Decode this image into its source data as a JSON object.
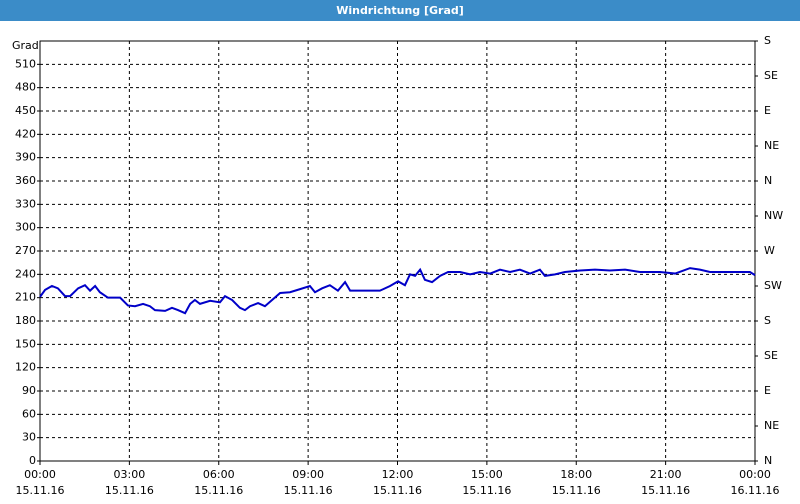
{
  "chart_data": {
    "type": "line",
    "title": "Windrichtung [Grad]",
    "y_label": "Grad",
    "xlim": [
      0,
      24
    ],
    "xticks": [
      {
        "value": 0,
        "label": "00:00"
      },
      {
        "value": 3,
        "label": "03:00"
      },
      {
        "value": 6,
        "label": "06:00"
      },
      {
        "value": 9,
        "label": "09:00"
      },
      {
        "value": 12,
        "label": "12:00"
      },
      {
        "value": 15,
        "label": "15:00"
      },
      {
        "value": 18,
        "label": "18:00"
      },
      {
        "value": 21,
        "label": "21:00"
      },
      {
        "value": 24,
        "label": "00:00"
      }
    ],
    "xtick_dates": [
      "15.11.16",
      "15.11.16",
      "15.11.16",
      "15.11.16",
      "15.11.16",
      "15.11.16",
      "15.11.16",
      "15.11.16",
      "16.11.16"
    ],
    "ylim": [
      0,
      540
    ],
    "yticks": [
      0,
      30,
      60,
      90,
      120,
      150,
      180,
      210,
      240,
      270,
      300,
      330,
      360,
      390,
      420,
      450,
      480,
      510
    ],
    "y2lim": [
      0,
      540
    ],
    "y2ticks": [
      {
        "value": 0,
        "label": "N"
      },
      {
        "value": 45,
        "label": "NE"
      },
      {
        "value": 90,
        "label": "E"
      },
      {
        "value": 135,
        "label": "SE"
      },
      {
        "value": 180,
        "label": "S"
      },
      {
        "value": 225,
        "label": "SW"
      },
      {
        "value": 270,
        "label": "W"
      },
      {
        "value": 315,
        "label": "NW"
      },
      {
        "value": 360,
        "label": "N"
      },
      {
        "value": 405,
        "label": "NE"
      },
      {
        "value": 450,
        "label": "E"
      },
      {
        "value": 495,
        "label": "SE"
      },
      {
        "value": 540,
        "label": "S"
      }
    ],
    "grid": true,
    "series": [
      {
        "color": "#0000c8",
        "x": [
          0,
          0.17,
          0.4,
          0.6,
          0.84,
          1.01,
          1.28,
          1.51,
          1.68,
          1.85,
          2.01,
          2.28,
          2.69,
          2.95,
          3.19,
          3.46,
          3.69,
          3.86,
          4.2,
          4.43,
          4.63,
          4.87,
          5.04,
          5.2,
          5.37,
          5.71,
          6.04,
          6.21,
          6.45,
          6.71,
          6.88,
          7.05,
          7.32,
          7.55,
          7.79,
          8.06,
          8.39,
          8.73,
          9.06,
          9.23,
          9.47,
          9.73,
          10,
          10.24,
          10.41,
          10.61,
          10.91,
          11.41,
          11.75,
          12.02,
          12.25,
          12.42,
          12.59,
          12.76,
          12.92,
          13.16,
          13.43,
          13.7,
          14.1,
          14.44,
          14.77,
          15.11,
          15.44,
          15.78,
          16.11,
          16.45,
          16.78,
          16.95,
          17.29,
          17.62,
          18.13,
          18.63,
          19.13,
          19.64,
          20.14,
          20.81,
          21.32,
          21.82,
          22.15,
          22.49,
          23.16,
          23.83,
          24
        ],
        "values": [
          211,
          220,
          225,
          222,
          212,
          212,
          222,
          226,
          219,
          225,
          217,
          210,
          210,
          200,
          199,
          202,
          199,
          194,
          193,
          197,
          194,
          190,
          202,
          207,
          202,
          206,
          204,
          212,
          207,
          197,
          194,
          199,
          203,
          199,
          207,
          216,
          217,
          221,
          225,
          217,
          222,
          226,
          219,
          230,
          219,
          219,
          219,
          219,
          225,
          231,
          226,
          240,
          238,
          246,
          233,
          230,
          238,
          243,
          243,
          240,
          243,
          241,
          246,
          243,
          246,
          241,
          246,
          238,
          240,
          243,
          245,
          246,
          245,
          246,
          243,
          243,
          241,
          248,
          246,
          243,
          243,
          243,
          239
        ]
      }
    ]
  }
}
